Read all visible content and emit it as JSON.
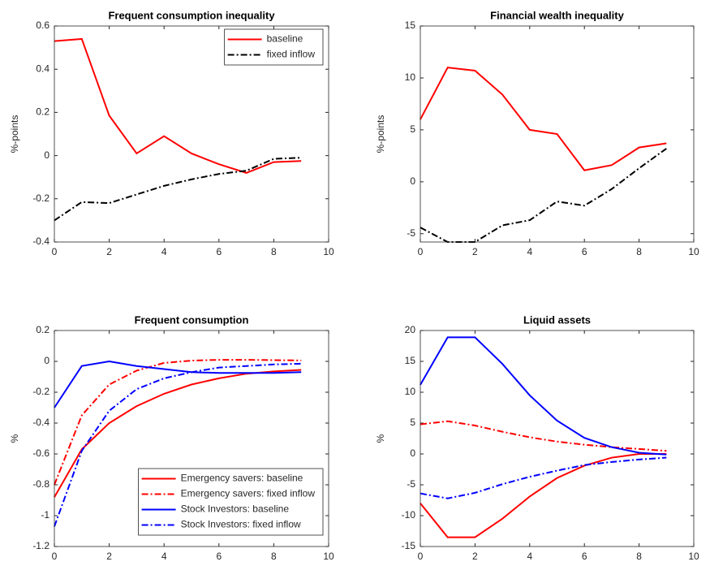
{
  "chart_data": [
    {
      "type": "line",
      "title": "Frequent consumption inequality",
      "ylabel": "%-points",
      "x": [
        0,
        1,
        2,
        3,
        4,
        5,
        6,
        7,
        8,
        9
      ],
      "xlim": [
        0,
        10
      ],
      "xticks": [
        0,
        2,
        4,
        6,
        8,
        10
      ],
      "ylim": [
        -0.4,
        0.6
      ],
      "yticks": [
        -0.4,
        -0.2,
        0,
        0.2,
        0.4,
        0.6
      ],
      "legend": "northeast",
      "series": [
        {
          "name": "baseline",
          "color": "#ff0000",
          "style": "solid",
          "values": [
            0.53,
            0.54,
            0.185,
            0.01,
            0.09,
            0.01,
            -0.04,
            -0.08,
            -0.03,
            -0.025
          ]
        },
        {
          "name": "fixed inflow",
          "color": "#000000",
          "style": "dashdot",
          "values": [
            -0.3,
            -0.215,
            -0.22,
            -0.18,
            -0.14,
            -0.11,
            -0.085,
            -0.07,
            -0.015,
            -0.01
          ]
        }
      ]
    },
    {
      "type": "line",
      "title": "Financial wealth inequality",
      "ylabel": "%-points",
      "x": [
        0,
        1,
        2,
        3,
        4,
        5,
        6,
        7,
        8,
        9
      ],
      "xlim": [
        0,
        10
      ],
      "xticks": [
        0,
        2,
        4,
        6,
        8,
        10
      ],
      "ylim": [
        -5.8,
        15
      ],
      "yticks": [
        -5,
        0,
        5,
        10,
        15
      ],
      "series": [
        {
          "color": "#ff0000",
          "style": "solid",
          "values": [
            6,
            11,
            10.7,
            8.4,
            5,
            4.6,
            1.1,
            1.6,
            3.3,
            3.7
          ]
        },
        {
          "color": "#000000",
          "style": "dashdot",
          "values": [
            -4.4,
            -5.8,
            -5.8,
            -4.2,
            -3.7,
            -1.9,
            -2.3,
            -0.7,
            1.3,
            3.2
          ]
        }
      ]
    },
    {
      "type": "line",
      "title": "Frequent consumption",
      "ylabel": "%",
      "x": [
        0,
        1,
        2,
        3,
        4,
        5,
        6,
        7,
        8,
        9
      ],
      "xlim": [
        0,
        10
      ],
      "xticks": [
        0,
        2,
        4,
        6,
        8,
        10
      ],
      "ylim": [
        -1.2,
        0.2
      ],
      "yticks": [
        -1.2,
        -1,
        -0.8,
        -0.6,
        -0.4,
        -0.2,
        0,
        0.2
      ],
      "legend": "southeast",
      "series": [
        {
          "name": "Emergency savers: baseline",
          "color": "#ff0000",
          "style": "solid",
          "values": [
            -0.88,
            -0.57,
            -0.4,
            -0.29,
            -0.21,
            -0.15,
            -0.11,
            -0.08,
            -0.065,
            -0.055
          ]
        },
        {
          "name": "Emergency savers: fixed inflow",
          "color": "#ff0000",
          "style": "dashdot",
          "values": [
            -0.8,
            -0.35,
            -0.15,
            -0.06,
            -0.01,
            0.005,
            0.01,
            0.01,
            0.008,
            0.006
          ]
        },
        {
          "name": "Stock Investors: baseline",
          "color": "#0000ff",
          "style": "solid",
          "values": [
            -0.3,
            -0.03,
            0,
            -0.03,
            -0.05,
            -0.07,
            -0.075,
            -0.075,
            -0.075,
            -0.07
          ]
        },
        {
          "name": "Stock Investors: fixed inflow",
          "color": "#0000ff",
          "style": "dashdot",
          "values": [
            -1.07,
            -0.58,
            -0.32,
            -0.18,
            -0.11,
            -0.07,
            -0.04,
            -0.03,
            -0.02,
            -0.015
          ]
        }
      ]
    },
    {
      "type": "line",
      "title": "Liquid assets",
      "ylabel": "%",
      "x": [
        0,
        1,
        2,
        3,
        4,
        5,
        6,
        7,
        8,
        9
      ],
      "xlim": [
        0,
        10
      ],
      "xticks": [
        0,
        2,
        4,
        6,
        8,
        10
      ],
      "ylim": [
        -15,
        20
      ],
      "yticks": [
        -15,
        -10,
        -5,
        0,
        5,
        10,
        15,
        20
      ],
      "series": [
        {
          "color": "#ff0000",
          "style": "solid",
          "values": [
            -8,
            -13.5,
            -13.5,
            -10.5,
            -6.9,
            -3.9,
            -1.9,
            -0.6,
            0,
            0
          ]
        },
        {
          "color": "#ff0000",
          "style": "dashdot",
          "values": [
            4.8,
            5.3,
            4.6,
            3.6,
            2.7,
            2.0,
            1.5,
            1.1,
            0.8,
            0.5
          ]
        },
        {
          "color": "#0000ff",
          "style": "solid",
          "values": [
            11.2,
            18.9,
            18.9,
            14.6,
            9.5,
            5.4,
            2.6,
            1.1,
            0.2,
            -0.1
          ]
        },
        {
          "color": "#0000ff",
          "style": "dashdot",
          "values": [
            -6.4,
            -7.2,
            -6.3,
            -4.9,
            -3.7,
            -2.7,
            -1.8,
            -1.3,
            -0.9,
            -0.6
          ]
        }
      ]
    }
  ]
}
